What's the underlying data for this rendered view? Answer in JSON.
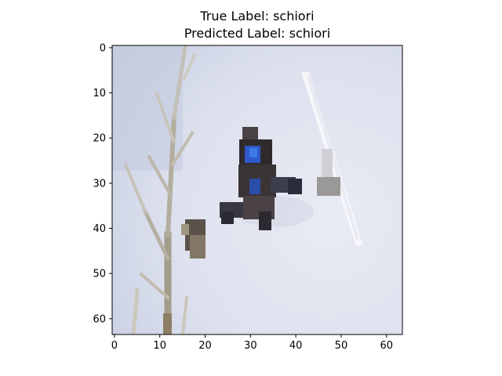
{
  "title": {
    "line1": "True Label: schiori",
    "line2": "Predicted Label: schiori"
  },
  "axes": {
    "x_ticks": [
      "0",
      "10",
      "20",
      "30",
      "40",
      "50",
      "60"
    ],
    "y_ticks": [
      "0",
      "10",
      "20",
      "30",
      "40",
      "50",
      "60"
    ],
    "xlim": [
      -0.5,
      63.5
    ],
    "ylim": [
      63.5,
      -0.5
    ]
  },
  "image": {
    "description_icon": "snowboarder-in-snow-image",
    "grid_size": 64,
    "colors": {
      "sky": "#dfe3ef",
      "sky_dark": "#c6cde0",
      "snow": "#e8eaf2",
      "tree": "#a59e8e",
      "tree_dark": "#7d715e",
      "rider_dark": "#2a2a33",
      "rider_jacket": "#2f5fcf",
      "board": "#f6f6fa",
      "spine": "#000000"
    }
  }
}
